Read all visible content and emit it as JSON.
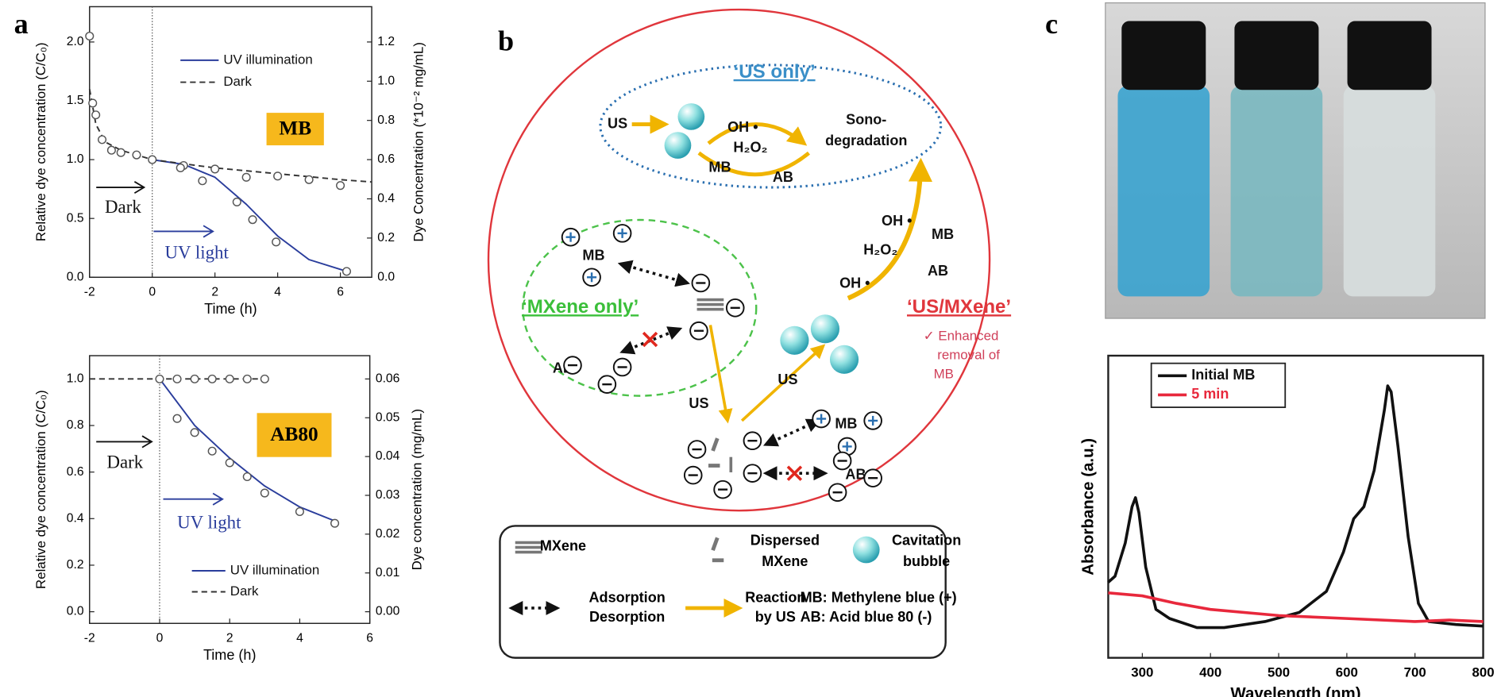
{
  "panels": [
    "a",
    "b",
    "c"
  ],
  "chart_data": [
    {
      "type": "line",
      "xlabel": "Time (h)",
      "ylabel": "Relative dye concentration (C/C₀)",
      "y2label": "Dye Concentration (*10⁻² mg/mL)",
      "xlim": [
        -2,
        7
      ],
      "xticks": [
        -2,
        0,
        2,
        4,
        6
      ],
      "ylim": [
        0,
        2.3
      ],
      "yticks": [
        {
          "value": 0,
          "label": "0.0"
        },
        0.5,
        {
          "value": 1,
          "label": "1.0"
        },
        1.5,
        {
          "value": 2,
          "label": "2.0"
        }
      ],
      "y2lim": [
        0,
        1.38
      ],
      "y2ticks": [
        {
          "value": 0,
          "label": "0.0"
        },
        0.2,
        0.4,
        0.6,
        0.8,
        {
          "value": 1,
          "label": "1.0"
        },
        1.2
      ],
      "series": [
        {
          "name": "UV illumination",
          "color": "#2a3d9c",
          "dash": false,
          "x": [
            0,
            1,
            2,
            3,
            4,
            5,
            6.2
          ],
          "values": [
            1.0,
            0.96,
            0.85,
            0.62,
            0.35,
            0.15,
            0.05
          ]
        },
        {
          "name": "Dark",
          "color": "#333333",
          "dash": true,
          "x": [
            -2,
            -1.8,
            -1.5,
            -1,
            0,
            2,
            4,
            6,
            7
          ],
          "values": [
            1.6,
            1.3,
            1.15,
            1.08,
            1.0,
            0.93,
            0.88,
            0.83,
            0.81
          ]
        }
      ],
      "points": {
        "x": [
          -2,
          -1.9,
          -1.8,
          -1.6,
          -1.3,
          -1,
          -0.5,
          0,
          1,
          2,
          3,
          4,
          5,
          6,
          0.9,
          1.6,
          2.7,
          3.2,
          3.95,
          6.2
        ],
        "values": [
          2.05,
          1.48,
          1.38,
          1.17,
          1.08,
          1.06,
          1.04,
          1.0,
          0.95,
          0.92,
          0.85,
          0.86,
          0.83,
          0.78,
          0.93,
          0.82,
          0.64,
          0.49,
          0.3,
          0.05
        ]
      },
      "marker_x": 0,
      "legend": "upper right",
      "annotations": [
        "MB",
        "Dark",
        "UV light"
      ]
    },
    {
      "type": "line",
      "xlabel": "Time (h)",
      "ylabel": "Relative dye concentration (C/C₀)",
      "y2label": "Dye concentration (mg/mL)",
      "xlim": [
        -2,
        6
      ],
      "xticks": [
        -2,
        0,
        2,
        4,
        6
      ],
      "ylim": [
        -0.05,
        1.1
      ],
      "yticks": [
        {
          "value": 0,
          "label": "0.0"
        },
        0.2,
        0.4,
        0.6,
        0.8,
        {
          "value": 1,
          "label": "1.0"
        }
      ],
      "y2lim": [
        -0.003,
        0.066
      ],
      "y2ticks": [
        {
          "value": 0,
          "label": "0.00"
        },
        0.01,
        0.02,
        0.03,
        0.04,
        0.05,
        0.06
      ],
      "series": [
        {
          "name": "UV illumination",
          "color": "#2a3d9c",
          "dash": false,
          "x": [
            0,
            1,
            2,
            3,
            4,
            5
          ],
          "values": [
            1.0,
            0.8,
            0.66,
            0.54,
            0.45,
            0.39
          ]
        },
        {
          "name": "Dark",
          "color": "#333333",
          "dash": true,
          "x": [
            -2,
            3
          ],
          "values": [
            1.0,
            1.0
          ]
        }
      ],
      "points": {
        "x": [
          0,
          0.5,
          1,
          1.5,
          2,
          2.5,
          3,
          0.5,
          1,
          1.5,
          2,
          2.5,
          3,
          4,
          5
        ],
        "values": [
          1.0,
          1.0,
          1.0,
          1.0,
          1.0,
          1.0,
          1.0,
          0.83,
          0.77,
          0.69,
          0.64,
          0.58,
          0.51,
          0.43,
          0.38
        ]
      },
      "marker_x": 0,
      "legend": "lower right",
      "annotations": [
        "AB80",
        "Dark",
        "UV light"
      ]
    },
    {
      "type": "line",
      "xlabel": "Wavelength (nm)",
      "ylabel": "Absorbance (a.u.)",
      "xlim": [
        250,
        800
      ],
      "xticks": [
        300,
        400,
        500,
        600,
        700,
        800
      ],
      "ylim": [
        0,
        1
      ],
      "series": [
        {
          "name": "Initial MB",
          "color": "#111111",
          "dash": false,
          "x": [
            250,
            260,
            275,
            285,
            290,
            295,
            305,
            320,
            340,
            380,
            420,
            480,
            530,
            570,
            595,
            610,
            625,
            640,
            655,
            660,
            665,
            675,
            690,
            705,
            720,
            760,
            800
          ],
          "values": [
            0.25,
            0.27,
            0.38,
            0.5,
            0.53,
            0.48,
            0.3,
            0.16,
            0.13,
            0.1,
            0.1,
            0.12,
            0.15,
            0.22,
            0.35,
            0.46,
            0.5,
            0.62,
            0.82,
            0.9,
            0.88,
            0.7,
            0.4,
            0.18,
            0.12,
            0.11,
            0.105
          ]
        },
        {
          "name": "5 min",
          "color": "#e8283c",
          "dash": false,
          "x": [
            250,
            300,
            350,
            400,
            500,
            600,
            700,
            750,
            800
          ],
          "values": [
            0.215,
            0.205,
            0.18,
            0.16,
            0.14,
            0.13,
            0.12,
            0.125,
            0.12
          ]
        }
      ],
      "legend": "upper left"
    }
  ],
  "diagram": {
    "labels": [
      "‘US only’",
      "US",
      "OH •",
      "H₂O₂",
      "MB",
      "AB",
      "Sono-",
      "degradation",
      "MB",
      "AB",
      "‘MXene only’",
      "‘US/MXene’",
      "✓ Enhanced",
      "removal of",
      "MB",
      "OH •",
      "MB",
      "H₂O₂",
      "AB",
      "OH •",
      "US",
      "US",
      "MB",
      "AB"
    ],
    "legend": [
      "MXene",
      "Dispersed",
      "MXene",
      "Cavitation",
      "bubble",
      "Adsorption",
      "Desorption",
      "Reaction",
      "by US",
      "MB: Methylene blue (+)",
      "AB: Acid blue 80 (-)"
    ]
  }
}
